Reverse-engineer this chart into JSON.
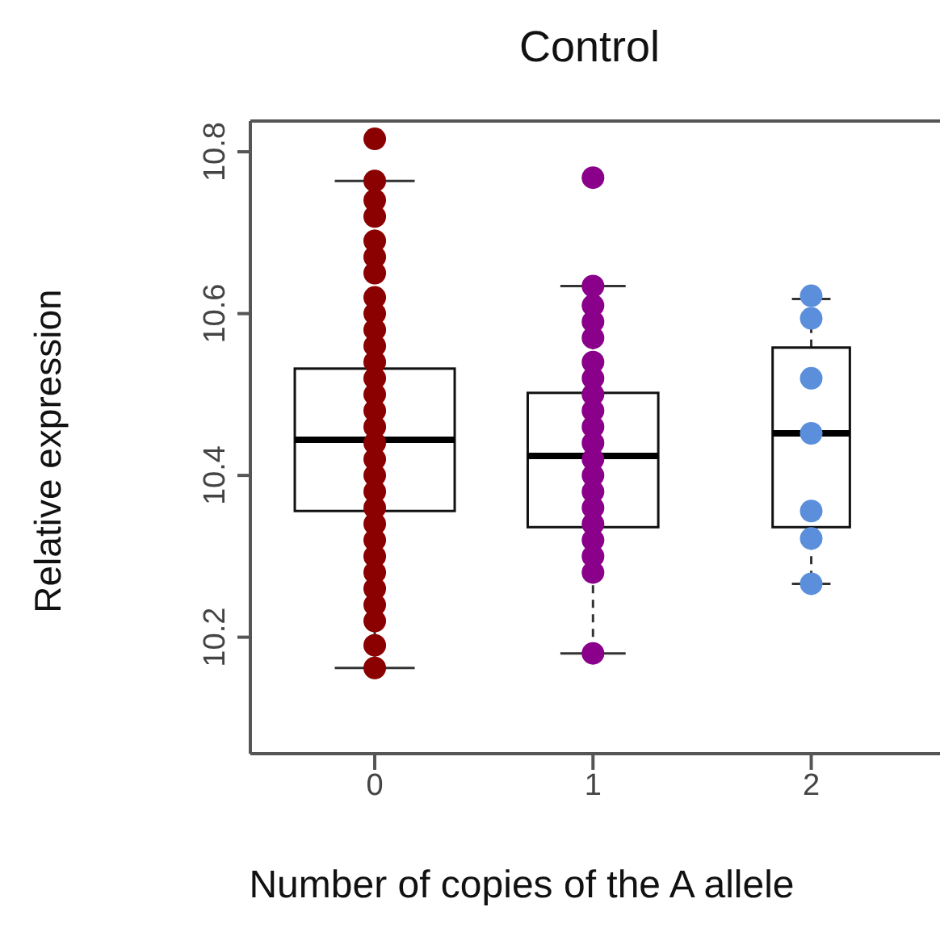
{
  "chart_data": {
    "type": "box",
    "title": "Control",
    "xlabel": "Number of copies of the A allele",
    "ylabel": "Relative expression",
    "categories": [
      "0",
      "1",
      "2"
    ],
    "boxes": [
      {
        "low": 10.162,
        "q1": 10.356,
        "median": 10.444,
        "q3": 10.532,
        "high": 10.764
      },
      {
        "low": 10.18,
        "q1": 10.336,
        "median": 10.424,
        "q3": 10.502,
        "high": 10.634
      },
      {
        "low": 10.266,
        "q1": 10.336,
        "median": 10.452,
        "q3": 10.558,
        "high": 10.618
      }
    ],
    "series": [
      {
        "type": "scatter",
        "color": "#8b0000",
        "x": [
          "0",
          "0",
          "0",
          "0",
          "0",
          "0",
          "0",
          "0",
          "0",
          "0",
          "0",
          "0",
          "0",
          "0",
          "0",
          "0",
          "0",
          "0",
          "0",
          "0",
          "0",
          "0",
          "0",
          "0",
          "0",
          "0",
          "0",
          "0",
          "0",
          "0"
        ],
        "values": [
          10.816,
          10.764,
          10.74,
          10.72,
          10.69,
          10.67,
          10.65,
          10.62,
          10.6,
          10.58,
          10.56,
          10.54,
          10.52,
          10.5,
          10.48,
          10.46,
          10.44,
          10.42,
          10.4,
          10.38,
          10.36,
          10.34,
          10.32,
          10.3,
          10.28,
          10.26,
          10.24,
          10.22,
          10.19,
          10.162
        ]
      },
      {
        "type": "scatter",
        "color": "#8b008b",
        "x": [
          "1",
          "1",
          "1",
          "1",
          "1",
          "1",
          "1",
          "1",
          "1",
          "1",
          "1",
          "1",
          "1",
          "1",
          "1",
          "1",
          "1",
          "1",
          "1",
          "1"
        ],
        "values": [
          10.768,
          10.634,
          10.61,
          10.59,
          10.57,
          10.54,
          10.52,
          10.5,
          10.48,
          10.46,
          10.44,
          10.42,
          10.4,
          10.38,
          10.36,
          10.34,
          10.32,
          10.3,
          10.28,
          10.18
        ]
      },
      {
        "type": "scatter",
        "color": "#5b8fdc",
        "x": [
          "2",
          "2",
          "2",
          "2",
          "2",
          "2",
          "2"
        ],
        "values": [
          10.622,
          10.594,
          10.52,
          10.452,
          10.356,
          10.322,
          10.266
        ]
      }
    ],
    "marker": "circle",
    "ylim": [
      10.056,
      10.838
    ],
    "yticks": [
      10.2,
      10.4,
      10.6,
      10.8
    ]
  }
}
